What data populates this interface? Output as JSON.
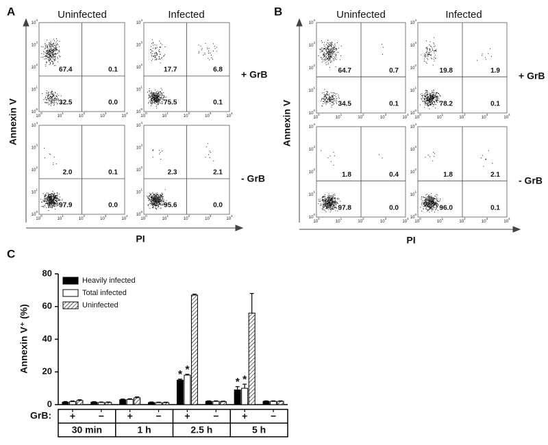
{
  "flow_ticks": [
    {
      "base": "10",
      "exp": "0"
    },
    {
      "base": "10",
      "exp": "1"
    },
    {
      "base": "10",
      "exp": "2"
    },
    {
      "base": "10",
      "exp": "3"
    },
    {
      "base": "10",
      "exp": "4"
    }
  ],
  "panels": [
    {
      "label": "A",
      "column_headers": [
        "Uninfected",
        "Infected"
      ],
      "row_labels": [
        "+ GrB",
        "- GrB"
      ],
      "y_axis_label": "Annexin V",
      "x_axis_label": "PI",
      "plots": [
        {
          "quadrants": [
            "67.4",
            "0.1",
            "32.5",
            "0.0"
          ]
        },
        {
          "quadrants": [
            "17.7",
            "6.8",
            "75.5",
            "0.1"
          ]
        },
        {
          "quadrants": [
            "2.0",
            "0.1",
            "97.9",
            "0.0"
          ]
        },
        {
          "quadrants": [
            "2.3",
            "2.1",
            "95.6",
            "0.0"
          ]
        }
      ]
    },
    {
      "label": "B",
      "column_headers": [
        "Uninfected",
        "Infected"
      ],
      "row_labels": [
        "+ GrB",
        "- GrB"
      ],
      "y_axis_label": "Annexin V",
      "x_axis_label": "PI",
      "plots": [
        {
          "quadrants": [
            "64.7",
            "0.7",
            "34.5",
            "0.1"
          ]
        },
        {
          "quadrants": [
            "19.8",
            "1.9",
            "78.2",
            "0.1"
          ]
        },
        {
          "quadrants": [
            "1.8",
            "0.4",
            "97.8",
            "0.0"
          ]
        },
        {
          "quadrants": [
            "1.8",
            "2.1",
            "96.0",
            "0.1"
          ]
        }
      ]
    }
  ],
  "chart_data": {
    "type": "bar",
    "panel_label": "C",
    "y_axis_label": "Annexin V⁺ (%)",
    "category_axis_label": "GrB:",
    "categories": [
      "+",
      "−",
      "+",
      "−",
      "+",
      "−",
      "+",
      "−"
    ],
    "groups": [
      "30 min",
      "1 h",
      "2.5 h",
      "5 h"
    ],
    "ylim": [
      0,
      80
    ],
    "yticks": [
      0,
      20,
      40,
      60,
      80
    ],
    "series": [
      {
        "name": "Heavily infected",
        "color": "#000000",
        "fill_style": "solid",
        "values": [
          1.5,
          1.5,
          3,
          1.3,
          15,
          2,
          9,
          2
        ],
        "errors": [
          0.4,
          0.3,
          0.4,
          0.3,
          0.6,
          0.3,
          2,
          0.3
        ]
      },
      {
        "name": "Total infected",
        "color": "#ffffff",
        "fill_style": "solid",
        "values": [
          1.8,
          1.3,
          3.2,
          1.2,
          18,
          2,
          10,
          2
        ],
        "errors": [
          0.4,
          0.3,
          0.4,
          0.3,
          0.6,
          0.3,
          2.5,
          0.3
        ]
      },
      {
        "name": "Uninfected",
        "color": "#ffffff",
        "fill_style": "hatch",
        "values": [
          2.5,
          1.3,
          4.2,
          1.2,
          67,
          1.8,
          56,
          2
        ],
        "errors": [
          0.5,
          0.3,
          0.5,
          0.3,
          0.6,
          0.3,
          12,
          0.3
        ]
      }
    ],
    "annotations": [
      {
        "text": "*",
        "series": 0,
        "category": 4
      },
      {
        "text": "*",
        "series": 1,
        "category": 4
      },
      {
        "text": "*",
        "series": 0,
        "category": 6
      },
      {
        "text": "*",
        "series": 1,
        "category": 6
      }
    ]
  }
}
